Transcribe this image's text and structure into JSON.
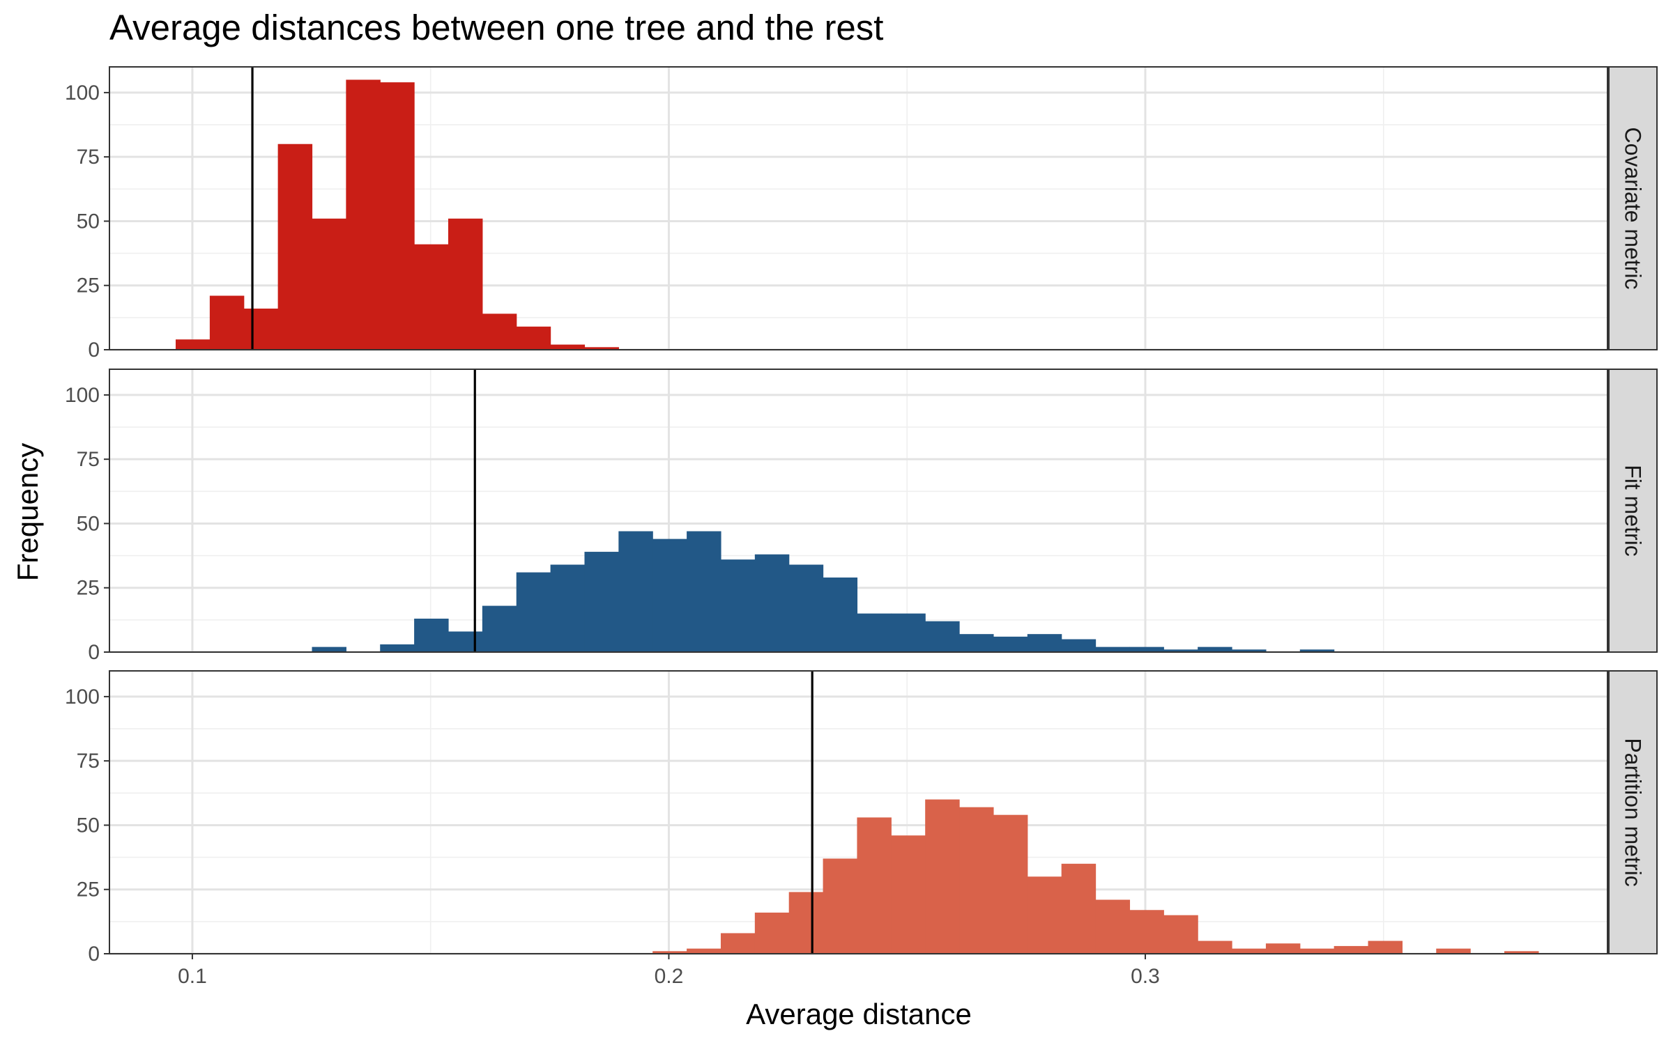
{
  "chart_data": {
    "type": "bar",
    "title": "Average distances between one tree and the rest",
    "xlabel": "Average distance",
    "ylabel": "Frequency",
    "xlim": [
      0.0826,
      0.397
    ],
    "ylim": [
      0,
      110
    ],
    "x_ticks": [
      "0.1",
      "0.2",
      "0.3"
    ],
    "x_tick_values": [
      0.1,
      0.2,
      0.3
    ],
    "y_ticks": [
      "0",
      "25",
      "50",
      "75",
      "100"
    ],
    "y_tick_values": [
      0,
      25,
      50,
      75,
      100
    ],
    "grid": true,
    "panels": [
      {
        "name": "Covariate metric",
        "color": "#C91E16",
        "bin_width": 0.00715,
        "bin_starts": [
          0.0965,
          0.10365,
          0.1108,
          0.11795,
          0.1251,
          0.13225,
          0.1394,
          0.14655,
          0.1537,
          0.16085,
          0.168,
          0.17515,
          0.1823
        ],
        "values": [
          4,
          21,
          16,
          80,
          51,
          105,
          104,
          41,
          51,
          14,
          9,
          2,
          1
        ],
        "vline": 0.1126
      },
      {
        "name": "Fit metric",
        "color": "#225887",
        "bin_width": 0.00715,
        "bin_starts": [
          0.1251,
          0.13225,
          0.1394,
          0.14655,
          0.1537,
          0.16085,
          0.168,
          0.17515,
          0.1823,
          0.18945,
          0.1966,
          0.20375,
          0.2109,
          0.21805,
          0.2252,
          0.23235,
          0.2395,
          0.24665,
          0.2538,
          0.26095,
          0.2681,
          0.27525,
          0.2824,
          0.28955,
          0.2967,
          0.30385,
          0.311,
          0.31815,
          0.3253,
          0.33245
        ],
        "values": [
          2,
          0,
          3,
          13,
          8,
          18,
          31,
          34,
          39,
          47,
          44,
          47,
          36,
          38,
          34,
          29,
          15,
          15,
          12,
          7,
          6,
          7,
          5,
          2,
          2,
          1,
          2,
          1,
          0,
          1
        ],
        "vline": 0.1593
      },
      {
        "name": "Partition metric",
        "color": "#D9624A",
        "bin_width": 0.00715,
        "bin_starts": [
          0.1966,
          0.20375,
          0.2109,
          0.21805,
          0.2252,
          0.23235,
          0.2395,
          0.24665,
          0.2538,
          0.26095,
          0.2681,
          0.27525,
          0.2824,
          0.28955,
          0.2967,
          0.30385,
          0.311,
          0.31815,
          0.3253,
          0.33245,
          0.3396,
          0.34675,
          0.3539,
          0.36105,
          0.3682,
          0.37535
        ],
        "values": [
          1,
          2,
          8,
          16,
          24,
          37,
          53,
          46,
          60,
          57,
          54,
          30,
          35,
          21,
          17,
          15,
          5,
          2,
          4,
          2,
          3,
          5,
          0,
          2,
          0,
          1
        ],
        "vline": 0.2301
      }
    ]
  }
}
